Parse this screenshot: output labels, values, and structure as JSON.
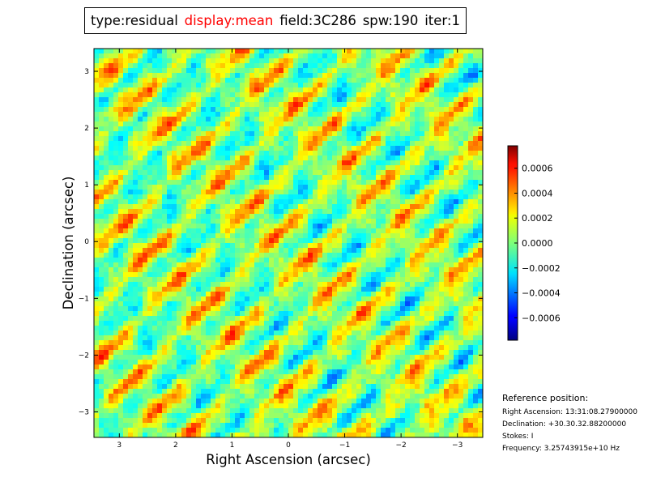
{
  "title_parts": [
    {
      "text": "type:residual",
      "color": "#000000"
    },
    {
      "text": "display:mean",
      "color": "#ff0000"
    },
    {
      "text": "field:3C286",
      "color": "#000000"
    },
    {
      "text": "spw:190",
      "color": "#000000"
    },
    {
      "text": "iter:1",
      "color": "#000000"
    }
  ],
  "chart_data": {
    "type": "heatmap",
    "xlabel": "Right Ascension (arcsec)",
    "ylabel": "Declination (arcsec)",
    "xlim": [
      3.45,
      -3.45
    ],
    "ylim": [
      -3.45,
      3.4
    ],
    "x_ticks": [
      3,
      2,
      1,
      0,
      -1,
      -2,
      -3
    ],
    "x_tick_labels": [
      "3",
      "2",
      "1",
      "0",
      "−1",
      "−2",
      "−3"
    ],
    "y_ticks": [
      3,
      2,
      1,
      0,
      -1,
      -2,
      -3
    ],
    "y_tick_labels": [
      "3",
      "2",
      "1",
      "0",
      "−1",
      "−2",
      "−3"
    ],
    "colormap": "jet",
    "colorbar": {
      "range": [
        -0.00078,
        0.00078
      ],
      "ticks": [
        0.0006,
        0.0004,
        0.0002,
        0.0,
        -0.0002,
        -0.0004,
        -0.0006
      ],
      "tick_labels": [
        "0.0006",
        "0.0004",
        "0.0002",
        "0.0000",
        "−0.0002",
        "−0.0004",
        "−0.0006"
      ]
    }
  },
  "reference": {
    "heading": "Reference position:",
    "lines": [
      "Right Ascension: 13:31:08.27900000",
      "Declination: +30.30.32.88200000",
      "Stokes: I",
      "Frequency: 3.25743915e+10 Hz"
    ]
  }
}
